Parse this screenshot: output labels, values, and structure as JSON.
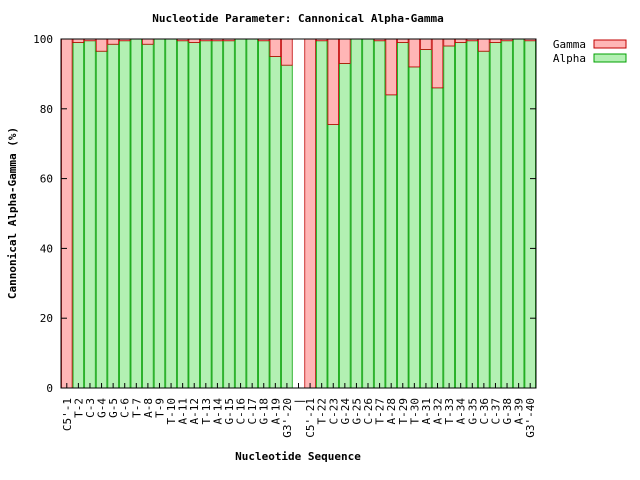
{
  "chart_data": {
    "type": "bar",
    "stacked": true,
    "title": "Nucleotide Parameter: Cannonical Alpha-Gamma",
    "xlabel": "Nucleotide Sequence",
    "ylabel": "Cannonical Alpha-Gamma (%)",
    "ylim": [
      0,
      100
    ],
    "yticks": [
      0,
      20,
      40,
      60,
      80,
      100
    ],
    "legend_position": "top-right, outside plot",
    "grid": false,
    "categories": [
      "C5'-1",
      "T-2",
      "C-3",
      "G-4",
      "G-5",
      "C-6",
      "T-7",
      "A-8",
      "T-9",
      "T-10",
      "A-11",
      "A-12",
      "T-13",
      "A-14",
      "G-15",
      "C-16",
      "C-17",
      "G-18",
      "A-19",
      "G3'-20",
      "|",
      "C5'-21",
      "T-22",
      "C-23",
      "G-24",
      "G-25",
      "C-26",
      "T-27",
      "A-28",
      "T-29",
      "T-30",
      "A-31",
      "A-32",
      "T-33",
      "A-34",
      "G-35",
      "C-36",
      "C-37",
      "G-38",
      "A-39",
      "G3'-40"
    ],
    "series": [
      {
        "name": "Alpha",
        "color": "#b3f0b3",
        "edge": "#00a000",
        "values": [
          0,
          99,
          99.5,
          96.5,
          98.5,
          99.5,
          100,
          98.5,
          100,
          100,
          99.5,
          99,
          99.5,
          99.5,
          99.5,
          100,
          100,
          99.5,
          95,
          92.5,
          null,
          0,
          99.5,
          75.5,
          93,
          100,
          100,
          99.5,
          84,
          99,
          92,
          97,
          86,
          98,
          99,
          99.5,
          96.5,
          99,
          99.5,
          100,
          99.5
        ]
      },
      {
        "name": "Gamma",
        "color": "#ffb6b6",
        "edge": "#c00000",
        "values": [
          100,
          1,
          0.5,
          3.5,
          1.5,
          0.5,
          0,
          1.5,
          0,
          0,
          0.5,
          1,
          0.5,
          0.5,
          0.5,
          0,
          0,
          0.5,
          5,
          7.5,
          null,
          100,
          0.5,
          24.5,
          7,
          0,
          0,
          0.5,
          16,
          1,
          8,
          3,
          14,
          2,
          1,
          0.5,
          3.5,
          1,
          0.5,
          0,
          0.5
        ]
      }
    ]
  }
}
